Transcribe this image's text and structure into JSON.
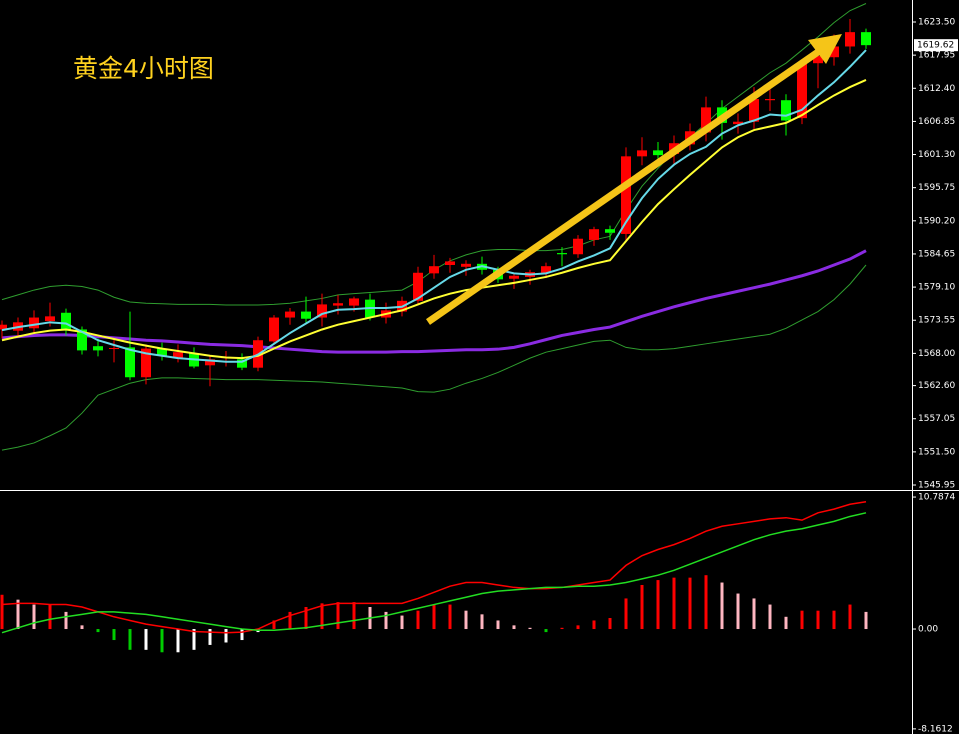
{
  "chart_data": [
    {
      "type": "candlestick",
      "title": "黄金4小时图",
      "up_color": "#ff0000",
      "down_color": "#00ff00",
      "open": [
        1572.0,
        1571.8,
        1572.2,
        1573.4,
        1574.8,
        1572.0,
        1569.2,
        1568.8,
        1569.0,
        1564.0,
        1568.8,
        1567.3,
        1568.0,
        1566.0,
        1567.2,
        1567.0,
        1565.6,
        1570.0,
        1574.0,
        1575.0,
        1574.0,
        1576.0,
        1576.0,
        1577.0,
        1574.0,
        1575.0,
        1576.8,
        1581.4,
        1582.8,
        1582.5,
        1583.0,
        1582.0,
        1580.5,
        1580.8,
        1581.5,
        1584.8,
        1584.6,
        1587.0,
        1588.8,
        1588.0,
        1601.0,
        1602.0,
        1601.4,
        1603.0,
        1605.0,
        1609.2,
        1606.4,
        1606.8,
        1610.4,
        1610.4,
        1607.4,
        1616.6,
        1617.6,
        1619.4,
        1621.8
      ],
      "high": [
        1573.5,
        1574.0,
        1575.2,
        1576.5,
        1575.5,
        1572.5,
        1570.5,
        1570.2,
        1575.0,
        1569.5,
        1569.8,
        1569.5,
        1569.0,
        1567.5,
        1568.4,
        1568.0,
        1570.8,
        1574.4,
        1575.6,
        1577.5,
        1578.0,
        1577.8,
        1577.5,
        1578.0,
        1576.5,
        1577.5,
        1582.5,
        1584.5,
        1584.0,
        1583.6,
        1584.2,
        1582.5,
        1581.5,
        1582.0,
        1583.2,
        1585.8,
        1587.8,
        1589.2,
        1589.4,
        1602.5,
        1604.2,
        1603.4,
        1604.5,
        1606.5,
        1611.0,
        1610.4,
        1608.2,
        1612.6,
        1612.5,
        1611.4,
        1617.0,
        1619.4,
        1621.4,
        1624.0,
        1622.4
      ],
      "low": [
        1570.5,
        1570.8,
        1571.5,
        1572.5,
        1571.0,
        1567.8,
        1567.5,
        1566.5,
        1563.5,
        1562.8,
        1566.8,
        1566.5,
        1565.5,
        1562.5,
        1565.8,
        1565.2,
        1565.0,
        1569.5,
        1572.8,
        1573.2,
        1572.5,
        1574.5,
        1575.0,
        1573.5,
        1573.0,
        1574.2,
        1576.2,
        1580.5,
        1581.5,
        1581.0,
        1581.2,
        1579.8,
        1578.8,
        1579.5,
        1580.6,
        1582.6,
        1584.0,
        1586.0,
        1587.0,
        1586.8,
        1599.5,
        1600.2,
        1599.8,
        1602.0,
        1603.5,
        1603.8,
        1604.8,
        1605.6,
        1608.6,
        1604.5,
        1606.4,
        1612.4,
        1616.2,
        1618.2,
        1619.0
      ],
      "close": [
        1572.8,
        1573.2,
        1574.0,
        1574.2,
        1572.0,
        1568.5,
        1568.5,
        1568.9,
        1564.0,
        1568.8,
        1567.6,
        1568.2,
        1565.8,
        1567.0,
        1567.4,
        1565.6,
        1570.2,
        1574.0,
        1575.0,
        1573.8,
        1576.2,
        1576.4,
        1577.2,
        1574.0,
        1575.2,
        1576.8,
        1581.5,
        1582.6,
        1583.4,
        1583.0,
        1582.0,
        1580.4,
        1581.0,
        1581.6,
        1582.6,
        1584.6,
        1587.2,
        1588.8,
        1588.2,
        1601.0,
        1602.0,
        1601.2,
        1603.2,
        1605.2,
        1609.2,
        1606.6,
        1606.8,
        1610.6,
        1610.6,
        1607.0,
        1616.6,
        1617.8,
        1619.4,
        1621.8,
        1619.62
      ],
      "bands": [
        {
          "color": "#2f9e2f",
          "values": [
            1577.0,
            1577.8,
            1578.6,
            1579.2,
            1579.4,
            1579.2,
            1578.6,
            1577.4,
            1576.6,
            1576.4,
            1576.3,
            1576.2,
            1576.2,
            1576.2,
            1576.1,
            1576.1,
            1576.1,
            1576.2,
            1576.4,
            1576.8,
            1577.2,
            1577.8,
            1578.0,
            1578.2,
            1578.4,
            1578.6,
            1580.0,
            1582.0,
            1583.5,
            1584.5,
            1585.2,
            1585.4,
            1585.4,
            1585.2,
            1585.2,
            1585.4,
            1586.0,
            1587.0,
            1587.6,
            1592.0,
            1596.0,
            1599.0,
            1601.8,
            1604.2,
            1606.5,
            1609.0,
            1611.0,
            1613.0,
            1615.0,
            1616.6,
            1618.8,
            1621.0,
            1623.4,
            1625.4,
            1626.6
          ]
        },
        {
          "color": "#2f9e2f",
          "values": [
            1551.8,
            1552.3,
            1553.0,
            1554.2,
            1555.5,
            1558.0,
            1561.0,
            1562.0,
            1563.0,
            1563.6,
            1563.9,
            1563.9,
            1563.8,
            1563.7,
            1563.6,
            1563.6,
            1563.6,
            1563.5,
            1563.4,
            1563.3,
            1563.2,
            1563.0,
            1562.8,
            1562.6,
            1562.4,
            1562.2,
            1561.6,
            1561.5,
            1562.0,
            1563.0,
            1563.8,
            1564.8,
            1566.0,
            1567.2,
            1568.2,
            1568.8,
            1569.4,
            1570.0,
            1570.2,
            1569.0,
            1568.6,
            1568.6,
            1568.8,
            1569.2,
            1569.6,
            1570.0,
            1570.4,
            1570.8,
            1571.2,
            1572.2,
            1573.6,
            1575.0,
            1577.0,
            1579.6,
            1582.8
          ]
        }
      ],
      "series": [
        {
          "color": "#8a2be2",
          "values": [
            1570.6,
            1570.8,
            1571.0,
            1571.1,
            1571.1,
            1571.0,
            1570.8,
            1570.6,
            1570.4,
            1570.2,
            1570.1,
            1569.9,
            1569.7,
            1569.5,
            1569.4,
            1569.3,
            1569.1,
            1568.9,
            1568.7,
            1568.5,
            1568.3,
            1568.2,
            1568.2,
            1568.2,
            1568.2,
            1568.3,
            1568.3,
            1568.4,
            1568.5,
            1568.6,
            1568.6,
            1568.7,
            1569.0,
            1569.6,
            1570.3,
            1571.0,
            1571.5,
            1572.0,
            1572.4,
            1573.3,
            1574.2,
            1575.0,
            1575.8,
            1576.5,
            1577.2,
            1577.8,
            1578.4,
            1579.0,
            1579.6,
            1580.3,
            1581.0,
            1581.8,
            1582.8,
            1583.8,
            1585.2
          ]
        },
        {
          "color": "#ffff33",
          "values": [
            1570.2,
            1570.8,
            1571.4,
            1571.8,
            1572.0,
            1571.6,
            1571.0,
            1570.4,
            1569.8,
            1569.3,
            1568.8,
            1568.4,
            1568.0,
            1567.6,
            1567.3,
            1567.2,
            1567.6,
            1568.8,
            1570.0,
            1571.0,
            1572.0,
            1572.8,
            1573.4,
            1574.0,
            1574.6,
            1575.2,
            1576.2,
            1577.2,
            1578.0,
            1578.6,
            1579.0,
            1579.4,
            1579.8,
            1580.3,
            1580.8,
            1581.5,
            1582.3,
            1583.0,
            1583.6,
            1586.8,
            1590.0,
            1593.0,
            1595.5,
            1597.9,
            1600.2,
            1602.5,
            1604.2,
            1605.4,
            1606.0,
            1606.6,
            1607.9,
            1609.6,
            1611.2,
            1612.6,
            1613.8
          ]
        },
        {
          "color": "#66d9e8",
          "values": [
            1571.9,
            1572.4,
            1572.8,
            1573.2,
            1573.0,
            1571.6,
            1570.2,
            1569.4,
            1568.6,
            1568.0,
            1567.6,
            1567.2,
            1567.0,
            1566.8,
            1566.6,
            1566.6,
            1567.8,
            1569.6,
            1571.4,
            1573.0,
            1574.6,
            1575.3,
            1575.4,
            1575.6,
            1575.6,
            1575.8,
            1577.2,
            1579.0,
            1580.8,
            1582.0,
            1582.6,
            1582.0,
            1581.4,
            1581.2,
            1581.4,
            1582.2,
            1583.4,
            1584.4,
            1585.6,
            1590.0,
            1594.0,
            1597.2,
            1599.6,
            1601.4,
            1602.6,
            1604.8,
            1606.2,
            1607.0,
            1608.0,
            1607.8,
            1608.8,
            1611.2,
            1613.4,
            1616.0,
            1618.8
          ]
        }
      ],
      "last_price": 1619.62,
      "ylim": [
        1545.45,
        1627.185
      ],
      "yticks": [
        {
          "value": 1623.5,
          "label": "1623.50"
        },
        1617.95,
        {
          "value": 1612.4,
          "label": "1612.40"
        },
        1606.85,
        {
          "value": 1601.3,
          "label": "1601.30"
        },
        1595.75,
        {
          "value": 1590.2,
          "label": "1590.20"
        },
        1584.65,
        {
          "value": 1579.1,
          "label": "1579.10"
        },
        1573.55,
        {
          "value": 1568,
          "label": "1568.00"
        },
        {
          "value": 1562.6,
          "label": "1562.60"
        },
        1557.05,
        {
          "value": 1551.5,
          "label": "1551.50"
        },
        1545.95
      ]
    },
    {
      "type": "macd",
      "values": [
        2.8,
        2.4,
        2.0,
        2.0,
        1.4,
        0.3,
        -0.25,
        -0.9,
        -1.7,
        -1.7,
        -1.9,
        -1.9,
        -1.7,
        -1.3,
        -1.1,
        -0.9,
        -0.25,
        0.7,
        1.4,
        1.8,
        2.1,
        2.2,
        2.2,
        1.8,
        1.4,
        1.1,
        1.5,
        2.0,
        2.0,
        1.5,
        1.2,
        0.7,
        0.3,
        0.1,
        -0.25,
        0.1,
        0.3,
        0.7,
        0.9,
        2.5,
        3.6,
        4.0,
        4.2,
        4.2,
        4.4,
        3.8,
        2.9,
        2.5,
        2.0,
        1.0,
        1.5,
        1.5,
        1.5,
        2.0,
        1.4
      ],
      "bar_colors": {
        "positive_rising": "#ff0000",
        "positive_falling": "#ffb6c1",
        "negative_falling": "#00cc00",
        "negative_rising": "#ffffff"
      },
      "series": [
        {
          "color": "#ff0000",
          "values": [
            2.0,
            2.1,
            2.1,
            2.0,
            2.0,
            1.8,
            1.4,
            1.0,
            0.7,
            0.4,
            0.2,
            0.0,
            -0.2,
            -0.25,
            -0.3,
            -0.25,
            0.0,
            0.6,
            1.1,
            1.5,
            1.9,
            2.1,
            2.1,
            2.1,
            2.1,
            2.1,
            2.5,
            3.0,
            3.5,
            3.8,
            3.8,
            3.6,
            3.4,
            3.3,
            3.3,
            3.4,
            3.6,
            3.8,
            4.0,
            5.2,
            6.0,
            6.5,
            6.9,
            7.4,
            8.0,
            8.4,
            8.6,
            8.8,
            9.0,
            9.1,
            8.9,
            9.5,
            9.8,
            10.2,
            10.4
          ]
        },
        {
          "color": "#22dd22",
          "values": [
            -0.3,
            0.1,
            0.5,
            0.8,
            1.0,
            1.2,
            1.4,
            1.4,
            1.3,
            1.2,
            1.0,
            0.8,
            0.6,
            0.4,
            0.2,
            0.0,
            -0.1,
            -0.1,
            0.0,
            0.1,
            0.3,
            0.5,
            0.7,
            0.9,
            1.1,
            1.4,
            1.7,
            2.0,
            2.3,
            2.6,
            2.9,
            3.1,
            3.2,
            3.3,
            3.4,
            3.4,
            3.5,
            3.5,
            3.6,
            3.8,
            4.1,
            4.4,
            4.8,
            5.3,
            5.8,
            6.3,
            6.8,
            7.3,
            7.7,
            8.0,
            8.2,
            8.5,
            8.8,
            9.2,
            9.5
          ]
        }
      ],
      "ylim": [
        -8.58,
        11.2
      ],
      "yticks": [
        10.7874,
        {
          "value": 0,
          "label": "0.00"
        },
        -8.1612
      ]
    }
  ]
}
